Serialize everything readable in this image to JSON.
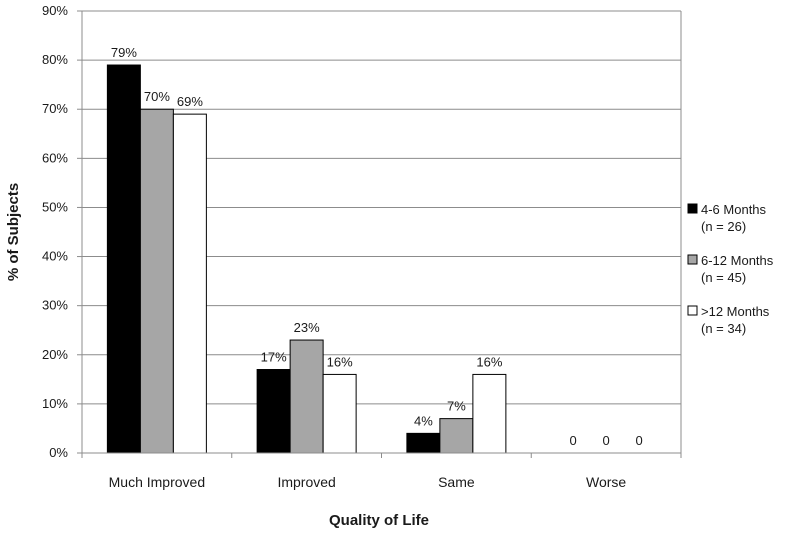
{
  "chart_data": {
    "type": "bar",
    "xlabel": "Quality of Life",
    "ylabel": "% of Subjects",
    "ylim": [
      0,
      90
    ],
    "ytick_step": 10,
    "ytick_suffix": "%",
    "grid": true,
    "legend_placement": "right",
    "categories": [
      "Much Improved",
      "Improved",
      "Same",
      "Worse"
    ],
    "series": [
      {
        "name": "4-6 Months",
        "sub": "(n = 26)",
        "color": "#000000",
        "values": [
          79,
          17,
          4,
          0
        ],
        "labels": [
          "79%",
          "17%",
          "4%",
          "0"
        ]
      },
      {
        "name": "6-12 Months",
        "sub": "(n = 45)",
        "color": "#a6a6a6",
        "values": [
          70,
          23,
          7,
          0
        ],
        "labels": [
          "70%",
          "23%",
          "7%",
          "0"
        ]
      },
      {
        "name": ">12 Months",
        "sub": "(n = 34)",
        "color": "#ffffff",
        "values": [
          69,
          16,
          16,
          0
        ],
        "labels": [
          "69%",
          "16%",
          "16%",
          "0"
        ]
      }
    ]
  }
}
